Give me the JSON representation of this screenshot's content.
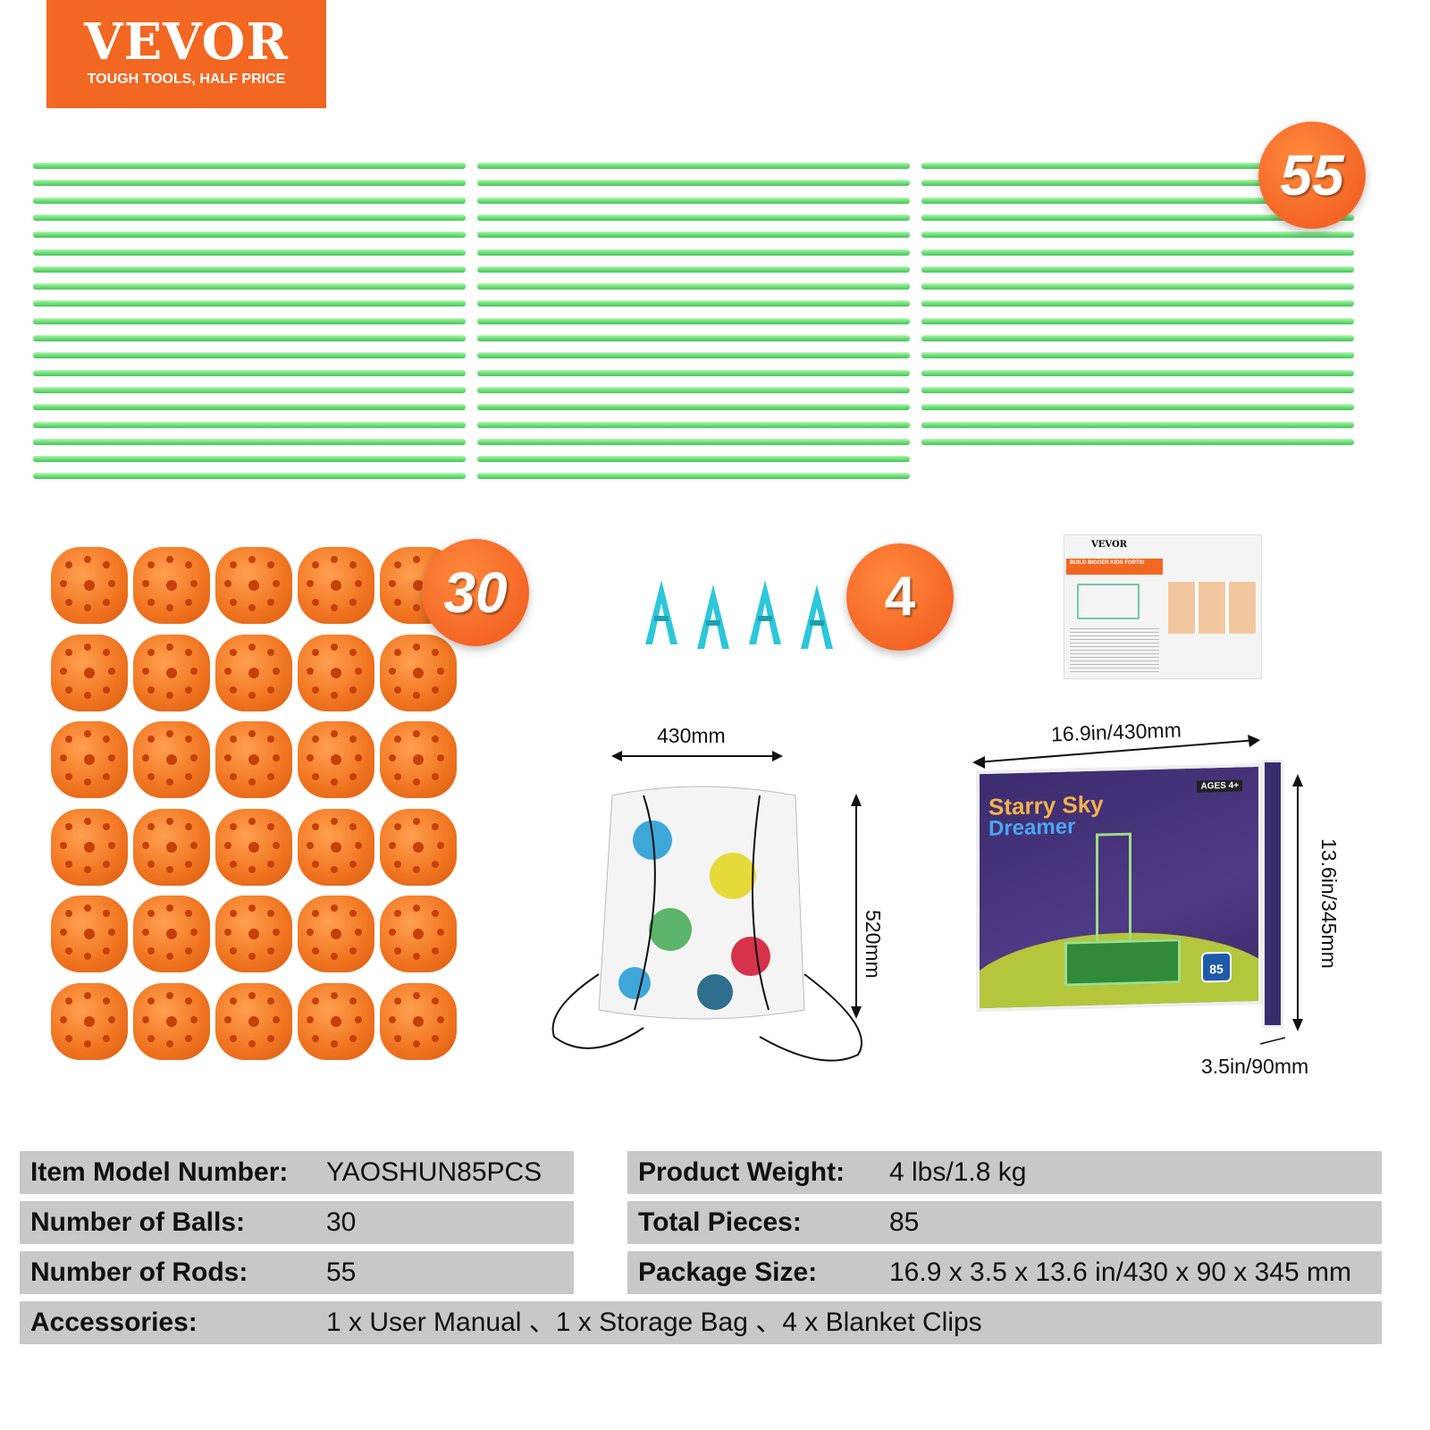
{
  "brand": {
    "name": "VEVOR",
    "tagline": "TOUGH TOOLS, HALF PRICE",
    "color": "#f26722"
  },
  "counts": {
    "rods": "55",
    "balls": "30",
    "clips": "4"
  },
  "colors": {
    "rod": "#6fe07a",
    "ball": "#f07420",
    "clip": "#2cc7d9",
    "badge": "#f0561b"
  },
  "bag": {
    "width": "430mm",
    "height": "520mm"
  },
  "box": {
    "title_line1": "Starry Sky",
    "title_line2": "Dreamer",
    "ages": "AGES 4+",
    "pieces": "85",
    "width": "16.9in/430mm",
    "height": "13.6in/345mm",
    "depth": "3.5in/90mm"
  },
  "manual": {
    "brand": "VEVOR",
    "headline": "BUILD BIGGER KIDS FORTS!"
  },
  "specs": [
    {
      "label": "Item Model Number:",
      "value": "YAOSHUN85PCS"
    },
    {
      "label": "Product Weight:",
      "value": "4 lbs/1.8 kg"
    },
    {
      "label": "Number of Balls:",
      "value": "30"
    },
    {
      "label": "Total Pieces:",
      "value": "85"
    },
    {
      "label": "Number of Rods:",
      "value": "55"
    },
    {
      "label": "Package Size:",
      "value": "16.9 x 3.5 x 13.6 in/430 x 90 x 345 mm"
    },
    {
      "label": "Accessories:",
      "value": "1 x User Manual 、1 x Storage Bag 、4 x Blanket Clips"
    }
  ]
}
